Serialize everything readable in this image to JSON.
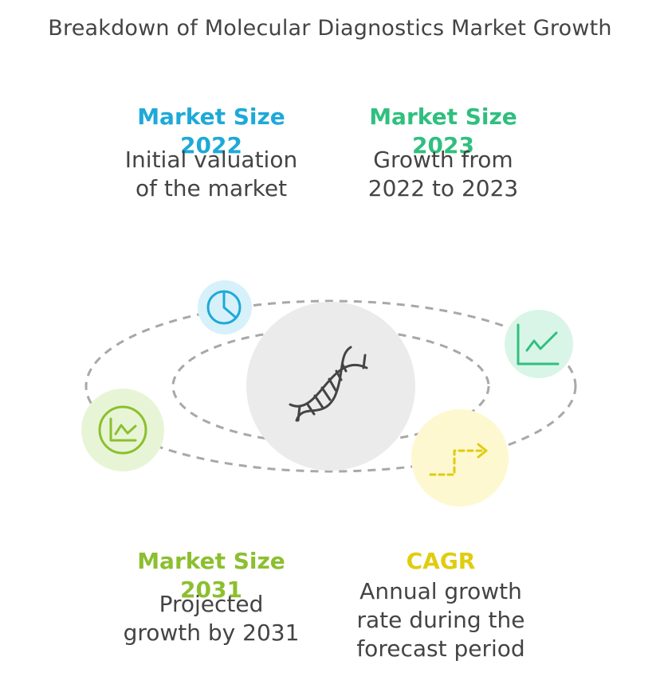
{
  "title": "Breakdown of Molecular Diagnostics Market Growth",
  "center": {
    "icon": "dna-icon",
    "color": "#ebebeb"
  },
  "items": [
    {
      "id": "market-size-2022",
      "heading": "Market Size 2022",
      "desc_line1": "Initial valuation",
      "desc_line2": "of the market",
      "color": "#1ea9d8",
      "bg": "#d7f1fa",
      "icon": "clock-icon"
    },
    {
      "id": "market-size-2023",
      "heading": "Market Size 2023",
      "desc_line1": "Growth from",
      "desc_line2": "2022 to 2023",
      "color": "#2fbf7f",
      "bg": "#d9f5e7",
      "icon": "line-chart-icon"
    },
    {
      "id": "market-size-2031",
      "heading": "Market Size 2031",
      "desc_line1": "Projected",
      "desc_line2": "growth by 2031",
      "color": "#8cbf2f",
      "bg": "#e7f5d6",
      "icon": "trend-chart-icon"
    },
    {
      "id": "cagr",
      "heading": "CAGR",
      "desc_line1": "Annual growth",
      "desc_line2": "rate during the",
      "desc_line3": "forecast period",
      "color": "#e0cc10",
      "bg": "#fdf8cf",
      "icon": "dashed-arrow-icon"
    }
  ]
}
